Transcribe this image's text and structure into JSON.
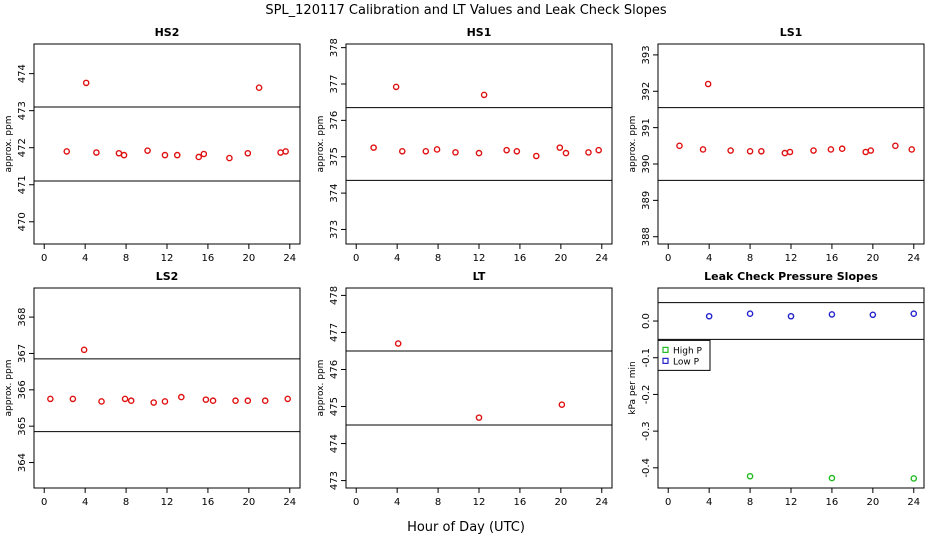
{
  "title": "SPL_120117  Calibration and LT Values and Leak Check Slopes",
  "xlabel": "Hour of Day (UTC)",
  "colors": {
    "point_red": "#e01010",
    "high_p": "#22bb22",
    "low_p": "#2222cc",
    "axis": "#000000"
  },
  "chart_data": [
    {
      "type": "scatter",
      "title": "HS2",
      "ylabel": "approx. ppm",
      "xlim": [
        -1,
        25
      ],
      "ylim": [
        469.4,
        474.8
      ],
      "xticks": [
        0,
        4,
        8,
        12,
        16,
        20,
        24
      ],
      "yticks": [
        470,
        471,
        472,
        473,
        474
      ],
      "hlines": [
        471.1,
        473.1
      ],
      "series": [
        {
          "name": "HS2",
          "color": "#e01010",
          "x": [
            2.2,
            4.1,
            5.1,
            7.3,
            7.8,
            10.1,
            11.8,
            13.0,
            15.1,
            15.6,
            18.1,
            19.9,
            23.1,
            23.6,
            21.0
          ],
          "y": [
            471.9,
            473.75,
            471.87,
            471.85,
            471.8,
            471.92,
            471.8,
            471.8,
            471.75,
            471.83,
            471.72,
            471.85,
            471.87,
            471.9,
            473.62
          ]
        }
      ]
    },
    {
      "type": "scatter",
      "title": "HS1",
      "ylabel": "approx. ppm",
      "xlim": [
        -1,
        25
      ],
      "ylim": [
        372.6,
        378.1
      ],
      "xticks": [
        0,
        4,
        8,
        12,
        16,
        20,
        24
      ],
      "yticks": [
        373,
        374,
        375,
        376,
        377,
        378
      ],
      "hlines": [
        374.35,
        376.35
      ],
      "series": [
        {
          "name": "HS1",
          "color": "#e01010",
          "x": [
            1.7,
            3.9,
            4.5,
            6.8,
            7.9,
            9.7,
            12.0,
            12.5,
            14.7,
            15.7,
            17.6,
            19.9,
            20.5,
            22.7,
            23.7
          ],
          "y": [
            375.25,
            376.92,
            375.15,
            375.15,
            375.2,
            375.12,
            375.1,
            376.7,
            375.18,
            375.15,
            375.02,
            375.25,
            375.1,
            375.12,
            375.18
          ]
        }
      ]
    },
    {
      "type": "scatter",
      "title": "LS1",
      "ylabel": "approx. ppm",
      "xlim": [
        -1,
        25
      ],
      "ylim": [
        387.8,
        393.3
      ],
      "xticks": [
        0,
        4,
        8,
        12,
        16,
        20,
        24
      ],
      "yticks": [
        388,
        389,
        390,
        391,
        392,
        393
      ],
      "hlines": [
        389.55,
        391.55
      ],
      "series": [
        {
          "name": "LS1",
          "color": "#e01010",
          "x": [
            1.1,
            3.4,
            3.9,
            6.1,
            8.0,
            9.1,
            11.4,
            11.9,
            14.2,
            15.9,
            17.0,
            19.3,
            19.8,
            22.2,
            23.8
          ],
          "y": [
            390.5,
            390.4,
            392.2,
            390.37,
            390.35,
            390.35,
            390.3,
            390.33,
            390.37,
            390.4,
            390.42,
            390.33,
            390.37,
            390.5,
            390.4
          ]
        }
      ]
    },
    {
      "type": "scatter",
      "title": "LS2",
      "ylabel": "approx. ppm",
      "xlim": [
        -1,
        25
      ],
      "ylim": [
        363.3,
        368.8
      ],
      "xticks": [
        0,
        4,
        8,
        12,
        16,
        20,
        24
      ],
      "yticks": [
        364,
        365,
        366,
        367,
        368
      ],
      "hlines": [
        364.85,
        366.85
      ],
      "series": [
        {
          "name": "LS2",
          "color": "#e01010",
          "x": [
            0.6,
            2.8,
            3.9,
            5.6,
            7.9,
            8.5,
            10.7,
            11.8,
            13.4,
            15.8,
            16.5,
            18.7,
            19.9,
            21.6,
            23.8
          ],
          "y": [
            365.75,
            365.75,
            367.1,
            365.68,
            365.75,
            365.7,
            365.65,
            365.68,
            365.8,
            365.73,
            365.7,
            365.7,
            365.7,
            365.7,
            365.75
          ]
        }
      ]
    },
    {
      "type": "scatter",
      "title": "LT",
      "ylabel": "approx. ppm",
      "xlim": [
        -1,
        25
      ],
      "ylim": [
        472.8,
        478.2
      ],
      "xticks": [
        0,
        4,
        8,
        12,
        16,
        20,
        24
      ],
      "yticks": [
        473,
        474,
        475,
        476,
        477,
        478
      ],
      "hlines": [
        474.5,
        476.5
      ],
      "series": [
        {
          "name": "LT",
          "color": "#e01010",
          "x": [
            4.1,
            12.0,
            20.1
          ],
          "y": [
            476.7,
            474.7,
            475.05
          ]
        }
      ]
    },
    {
      "type": "scatter",
      "title": "Leak Check Pressure Slopes",
      "ylabel": "kPa per min",
      "xlim": [
        -1,
        25
      ],
      "ylim": [
        -0.455,
        0.09
      ],
      "xticks": [
        0,
        4,
        8,
        12,
        16,
        20,
        24
      ],
      "yticks": [
        0.0,
        -0.1,
        -0.2,
        -0.3,
        -0.4
      ],
      "ytick_labels": [
        "0.0",
        "-0.1",
        "-0.2",
        "-0.3",
        "-0.4"
      ],
      "hlines": [
        0.05,
        -0.05
      ],
      "legend": {
        "placement": "left",
        "entries": [
          "High P",
          "Low P"
        ]
      },
      "series": [
        {
          "name": "High P",
          "color": "#22bb22",
          "x": [
            8,
            16,
            24
          ],
          "y": [
            -0.423,
            -0.428,
            -0.429
          ]
        },
        {
          "name": "Low P",
          "color": "#2222cc",
          "x": [
            4,
            8,
            12,
            16,
            20,
            24
          ],
          "y": [
            0.013,
            0.02,
            0.013,
            0.018,
            0.017,
            0.02
          ]
        }
      ]
    }
  ]
}
